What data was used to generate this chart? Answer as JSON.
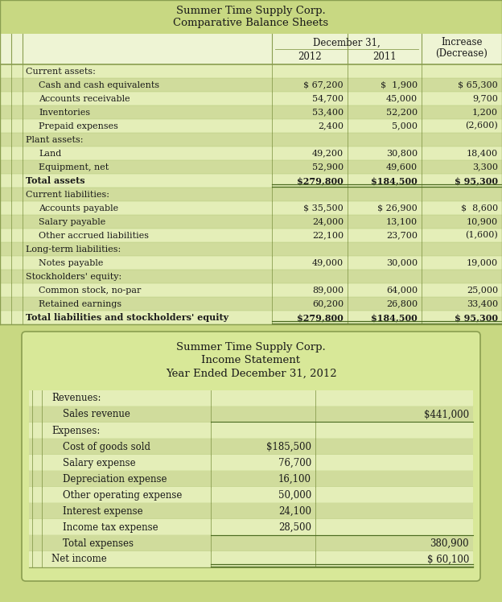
{
  "bg_color": "#c8d882",
  "table1_title1": "Summer Time Supply Corp.",
  "table1_title2": "Comparative Balance Sheets",
  "table1_header_col1": "December 31,",
  "table1_header_col2": "2012",
  "table1_header_col3": "2011",
  "table1_header_col4": "Increase",
  "table1_header_col4b": "(Decrease)",
  "table1_rows": [
    {
      "label": "Current assets:",
      "indent": 0,
      "v2012": "",
      "v2011": "",
      "vinc": "",
      "bold": false,
      "total": false,
      "section": true
    },
    {
      "label": "Cash and cash equivalents",
      "indent": 1,
      "v2012": "$ 67,200",
      "v2011": "$  1,900",
      "vinc": "$ 65,300",
      "bold": false,
      "total": false,
      "section": false
    },
    {
      "label": "Accounts receivable",
      "indent": 1,
      "v2012": "54,700",
      "v2011": "45,000",
      "vinc": "9,700",
      "bold": false,
      "total": false,
      "section": false
    },
    {
      "label": "Inventories",
      "indent": 1,
      "v2012": "53,400",
      "v2011": "52,200",
      "vinc": "1,200",
      "bold": false,
      "total": false,
      "section": false
    },
    {
      "label": "Prepaid expenses",
      "indent": 1,
      "v2012": "2,400",
      "v2011": "5,000",
      "vinc": "(2,600)",
      "bold": false,
      "total": false,
      "section": false
    },
    {
      "label": "Plant assets:",
      "indent": 0,
      "v2012": "",
      "v2011": "",
      "vinc": "",
      "bold": false,
      "total": false,
      "section": true
    },
    {
      "label": "Land",
      "indent": 1,
      "v2012": "49,200",
      "v2011": "30,800",
      "vinc": "18,400",
      "bold": false,
      "total": false,
      "section": false
    },
    {
      "label": "Equipment, net",
      "indent": 1,
      "v2012": "52,900",
      "v2011": "49,600",
      "vinc": "3,300",
      "bold": false,
      "total": false,
      "section": false
    },
    {
      "label": "Total assets",
      "indent": 0,
      "v2012": "$279,800",
      "v2011": "$184,500",
      "vinc": "$ 95,300",
      "bold": true,
      "total": true,
      "section": false
    },
    {
      "label": "Current liabilities:",
      "indent": 0,
      "v2012": "",
      "v2011": "",
      "vinc": "",
      "bold": false,
      "total": false,
      "section": true
    },
    {
      "label": "Accounts payable",
      "indent": 1,
      "v2012": "$ 35,500",
      "v2011": "$ 26,900",
      "vinc": "$  8,600",
      "bold": false,
      "total": false,
      "section": false
    },
    {
      "label": "Salary payable",
      "indent": 1,
      "v2012": "24,000",
      "v2011": "13,100",
      "vinc": "10,900",
      "bold": false,
      "total": false,
      "section": false
    },
    {
      "label": "Other accrued liabilities",
      "indent": 1,
      "v2012": "22,100",
      "v2011": "23,700",
      "vinc": "(1,600)",
      "bold": false,
      "total": false,
      "section": false
    },
    {
      "label": "Long-term liabilities:",
      "indent": 0,
      "v2012": "",
      "v2011": "",
      "vinc": "",
      "bold": false,
      "total": false,
      "section": true
    },
    {
      "label": "Notes payable",
      "indent": 1,
      "v2012": "49,000",
      "v2011": "30,000",
      "vinc": "19,000",
      "bold": false,
      "total": false,
      "section": false
    },
    {
      "label": "Stockholders' equity:",
      "indent": 0,
      "v2012": "",
      "v2011": "",
      "vinc": "",
      "bold": false,
      "total": false,
      "section": true
    },
    {
      "label": "Common stock, no-par",
      "indent": 1,
      "v2012": "89,000",
      "v2011": "64,000",
      "vinc": "25,000",
      "bold": false,
      "total": false,
      "section": false
    },
    {
      "label": "Retained earnings",
      "indent": 1,
      "v2012": "60,200",
      "v2011": "26,800",
      "vinc": "33,400",
      "bold": false,
      "total": false,
      "section": false
    },
    {
      "label": "Total liabilities and stockholders' equity",
      "indent": 0,
      "v2012": "$279,800",
      "v2011": "$184,500",
      "vinc": "$ 95,300",
      "bold": true,
      "total": true,
      "section": false
    }
  ],
  "table2_title1": "Summer Time Supply Corp.",
  "table2_title2": "Income Statement",
  "table2_title3": "Year Ended December 31, 2012",
  "table2_rows": [
    {
      "label": "Revenues:",
      "indent": 0,
      "vcol1": "",
      "vcol2": "",
      "bold": false,
      "section": true,
      "total": false,
      "underline2": false
    },
    {
      "label": "Sales revenue",
      "indent": 1,
      "vcol1": "",
      "vcol2": "$441,000",
      "bold": false,
      "section": false,
      "total": false,
      "underline2": true
    },
    {
      "label": "Expenses:",
      "indent": 0,
      "vcol1": "",
      "vcol2": "",
      "bold": false,
      "section": true,
      "total": false,
      "underline2": false
    },
    {
      "label": "Cost of goods sold",
      "indent": 1,
      "vcol1": "$185,500",
      "vcol2": "",
      "bold": false,
      "section": false,
      "total": false,
      "underline2": false
    },
    {
      "label": "Salary expense",
      "indent": 1,
      "vcol1": "76,700",
      "vcol2": "",
      "bold": false,
      "section": false,
      "total": false,
      "underline2": false
    },
    {
      "label": "Depreciation expense",
      "indent": 1,
      "vcol1": "16,100",
      "vcol2": "",
      "bold": false,
      "section": false,
      "total": false,
      "underline2": false
    },
    {
      "label": "Other operating expense",
      "indent": 1,
      "vcol1": "50,000",
      "vcol2": "",
      "bold": false,
      "section": false,
      "total": false,
      "underline2": false
    },
    {
      "label": "Interest expense",
      "indent": 1,
      "vcol1": "24,100",
      "vcol2": "",
      "bold": false,
      "section": false,
      "total": false,
      "underline2": false
    },
    {
      "label": "Income tax expense",
      "indent": 1,
      "vcol1": "28,500",
      "vcol2": "",
      "bold": false,
      "section": false,
      "total": false,
      "underline2": false
    },
    {
      "label": "Total expenses",
      "indent": 1,
      "vcol1": "",
      "vcol2": "380,900",
      "bold": false,
      "section": false,
      "total": false,
      "underline2": false
    },
    {
      "label": "Net income",
      "indent": 0,
      "vcol1": "",
      "vcol2": "$ 60,100",
      "bold": false,
      "section": false,
      "total": true,
      "underline2": false
    }
  ],
  "row_light": "#e4eeb8",
  "row_dark": "#d0dc9c",
  "header_green": "#c8d882",
  "border_col": "#8a9e50",
  "text_col": "#1a1a1a"
}
